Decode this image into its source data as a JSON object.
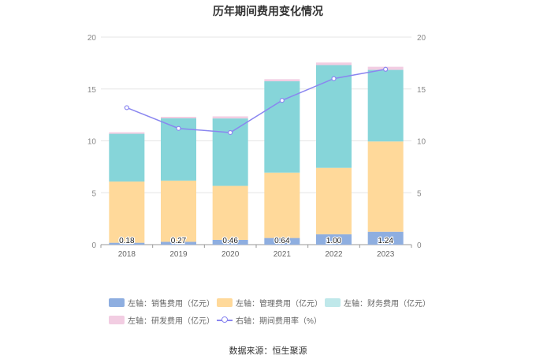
{
  "chart_data": {
    "type": "bar",
    "title": "历年期间费用变化情况",
    "categories": [
      "2018",
      "2019",
      "2020",
      "2021",
      "2022",
      "2023"
    ],
    "stacked": true,
    "left_axis": {
      "min": 0,
      "max": 20,
      "ticks": [
        0,
        5,
        10,
        15,
        20
      ]
    },
    "right_axis": {
      "min": 0,
      "max": 20,
      "ticks": [
        0,
        5,
        10,
        15,
        20
      ]
    },
    "series": [
      {
        "name": "左轴：销售费用（亿元）",
        "axis": "left",
        "type": "bar",
        "color": "#8eaee0",
        "values": [
          0.18,
          0.27,
          0.46,
          0.64,
          1.0,
          1.24
        ],
        "labels": [
          "0.18",
          "0.27",
          "0.46",
          "0.64",
          "1.00",
          "1.24"
        ]
      },
      {
        "name": "左轴：管理费用（亿元）",
        "axis": "left",
        "type": "bar",
        "color": "#ffd99a",
        "values": [
          5.9,
          5.9,
          5.2,
          6.3,
          6.4,
          8.7
        ]
      },
      {
        "name": "左轴：财务费用（亿元）",
        "axis": "left",
        "type": "bar",
        "color": "#86d5d9",
        "values": [
          4.6,
          6.0,
          6.5,
          8.8,
          9.9,
          6.9
        ]
      },
      {
        "name": "左轴：研发费用（亿元）",
        "axis": "left",
        "type": "bar",
        "color": "#f2cde2",
        "values": [
          0.15,
          0.15,
          0.2,
          0.2,
          0.25,
          0.3
        ]
      },
      {
        "name": "右轴：期间费用率（%）",
        "axis": "right",
        "type": "line",
        "color": "#8a86f0",
        "values": [
          13.2,
          11.2,
          10.8,
          13.9,
          16.0,
          16.9
        ]
      }
    ],
    "grid": true,
    "legend_position": "bottom"
  },
  "source": "数据来源：恒生聚源"
}
